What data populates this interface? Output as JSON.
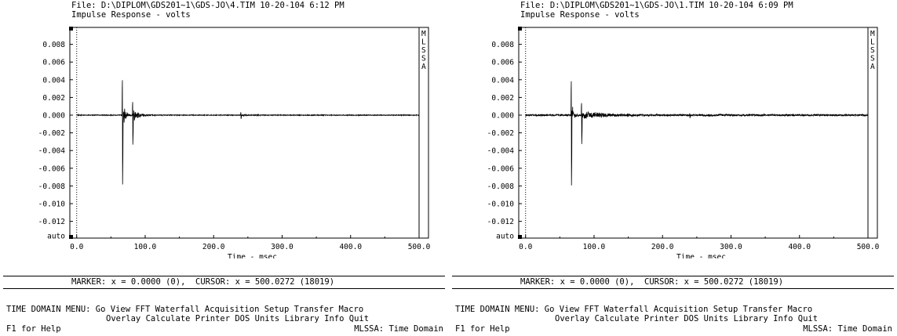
{
  "panels": [
    {
      "file_line": "File: D:\\DIPLOM\\GDS201~1\\GDS-JO\\4.TIM 10-20-104 6:12 PM",
      "plot_title": "Impulse Response - volts",
      "side_label": [
        "M",
        "L",
        "S",
        "S",
        "A"
      ],
      "status_line": "MARKER: x = 0.0000 (0),  CURSOR: x = 500.0272 (18019)",
      "menu_line1": "TIME DOMAIN MENU: Go View FFT Waterfall Acquisition Setup Transfer Macro",
      "menu_line2": "Overlay Calculate Printer DOS Units Library Info Quit",
      "help_text": "F1 for Help",
      "mode_text": "MLSSA: Time Domain",
      "chart_data": {
        "type": "line",
        "title": "Impulse Response - volts",
        "xlabel": "Time - msec",
        "ylabel": "",
        "xlim": [
          -10,
          500
        ],
        "ylim": [
          -0.014,
          0.01
        ],
        "x_ticks": [
          "0.0",
          "100.0",
          "200.0",
          "300.0",
          "400.0",
          "500.0"
        ],
        "y_ticks": [
          "0.008",
          "0.006",
          "0.004",
          "0.002",
          "0.000",
          "-0.002",
          "-0.004",
          "-0.006",
          "-0.008",
          "-0.010",
          "-0.012",
          "auto"
        ],
        "marker_x": 0,
        "events": [
          {
            "t": 67,
            "amp": 0.0049,
            "neg": -0.0078,
            "decay": 3
          },
          {
            "t": 69,
            "amp": 0.0012,
            "neg": -0.001,
            "decay": 4
          },
          {
            "t": 82,
            "amp": 0.0018,
            "neg": -0.0033,
            "decay": 6
          },
          {
            "t": 84,
            "amp": 0.0009,
            "neg": -0.0008,
            "decay": 12
          },
          {
            "t": 240,
            "amp": 0.00045,
            "neg": -0.0004,
            "decay": 18
          }
        ],
        "noise": 4e-05
      }
    },
    {
      "file_line": "File: D:\\DIPLOM\\GDS201~1\\GDS-JO\\1.TIM 10-20-104 6:09 PM",
      "plot_title": "Impulse Response - volts",
      "side_label": [
        "M",
        "L",
        "S",
        "S",
        "A"
      ],
      "status_line": "MARKER: x = 0.0000 (0),  CURSOR: x = 500.0272 (18019)",
      "menu_line1": "TIME DOMAIN MENU: Go View FFT Waterfall Acquisition Setup Transfer Macro",
      "menu_line2": "Overlay Calculate Printer DOS Units Library Info Quit",
      "help_text": "F1 for Help",
      "mode_text": "MLSSA: Time Domain",
      "chart_data": {
        "type": "line",
        "title": "Impulse Response - volts",
        "xlabel": "Time - msec",
        "ylabel": "",
        "xlim": [
          -10,
          500
        ],
        "ylim": [
          -0.014,
          0.01
        ],
        "x_ticks": [
          "0.0",
          "100.0",
          "200.0",
          "300.0",
          "400.0",
          "500.0"
        ],
        "y_ticks": [
          "0.008",
          "0.006",
          "0.004",
          "0.002",
          "0.000",
          "-0.002",
          "-0.004",
          "-0.006",
          "-0.008",
          "-0.010",
          "-0.012",
          "auto"
        ],
        "marker_x": 0,
        "events": [
          {
            "t": 67,
            "amp": 0.0047,
            "neg": -0.008,
            "decay": 3
          },
          {
            "t": 69,
            "amp": 0.001,
            "neg": -0.0012,
            "decay": 4
          },
          {
            "t": 82,
            "amp": 0.0017,
            "neg": -0.0033,
            "decay": 6
          },
          {
            "t": 86,
            "amp": 0.0007,
            "neg": -0.0006,
            "decay": 40
          },
          {
            "t": 240,
            "amp": 0.0003,
            "neg": -0.0003,
            "decay": 60
          }
        ],
        "noise": 9e-05
      }
    }
  ]
}
